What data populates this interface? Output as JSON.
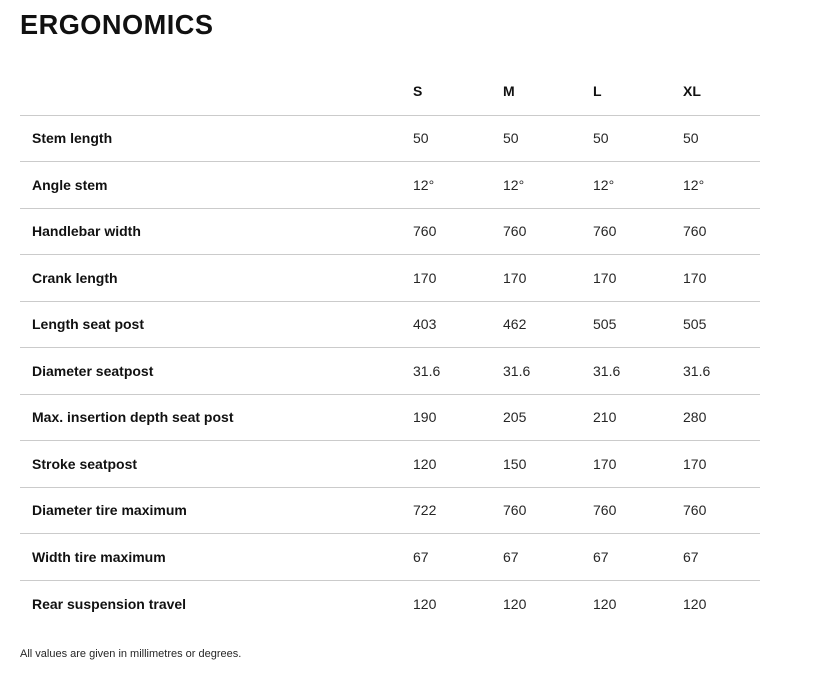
{
  "page": {
    "title": "ERGONOMICS",
    "footnote": "All values are given in millimetres or degrees."
  },
  "table": {
    "columns": [
      "S",
      "M",
      "L",
      "XL"
    ],
    "rows": [
      {
        "label": "Stem length",
        "values": [
          "50",
          "50",
          "50",
          "50"
        ]
      },
      {
        "label": "Angle stem",
        "values": [
          "12°",
          "12°",
          "12°",
          "12°"
        ]
      },
      {
        "label": "Handlebar width",
        "values": [
          "760",
          "760",
          "760",
          "760"
        ]
      },
      {
        "label": "Crank length",
        "values": [
          "170",
          "170",
          "170",
          "170"
        ]
      },
      {
        "label": "Length seat post",
        "values": [
          "403",
          "462",
          "505",
          "505"
        ]
      },
      {
        "label": "Diameter seatpost",
        "values": [
          "31.6",
          "31.6",
          "31.6",
          "31.6"
        ]
      },
      {
        "label": "Max. insertion depth seat post",
        "values": [
          "190",
          "205",
          "210",
          "280"
        ]
      },
      {
        "label": "Stroke seatpost",
        "values": [
          "120",
          "150",
          "170",
          "170"
        ]
      },
      {
        "label": "Diameter tire maximum",
        "values": [
          "722",
          "760",
          "760",
          "760"
        ]
      },
      {
        "label": "Width tire maximum",
        "values": [
          "67",
          "67",
          "67",
          "67"
        ]
      },
      {
        "label": "Rear suspension travel",
        "values": [
          "120",
          "120",
          "120",
          "120"
        ]
      }
    ]
  },
  "colors": {
    "background": "#ffffff",
    "heading_text": "#111111",
    "value_text": "#262626",
    "divider": "#cbcbcb"
  }
}
